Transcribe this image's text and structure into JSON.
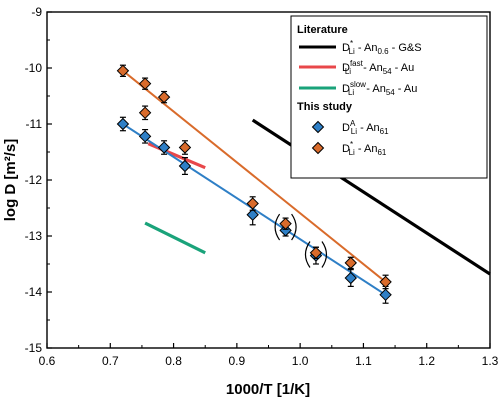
{
  "chart_data": {
    "type": "scatter",
    "xlabel": "1000/T [1/K]",
    "ylabel": "log D [m²/s]",
    "xlim": [
      0.6,
      1.3
    ],
    "ylim": [
      -15,
      -9
    ],
    "xticks": [
      "0.6",
      "0.7",
      "0.8",
      "0.9",
      "1.0",
      "1.1",
      "1.2",
      "1.3"
    ],
    "yticks": [
      "-15",
      "-14",
      "-13",
      "-12",
      "-11",
      "-10",
      "-9"
    ],
    "legend_position": "top-right",
    "legend": {
      "group1_title": "Literature",
      "group2_title": "This study",
      "entries": [
        {
          "sym": "D",
          "sup": "*",
          "sub": "Li",
          "rest": " - An",
          "rsub": "0.6",
          "tail": " - G&S",
          "color": "#000000",
          "kind": "line"
        },
        {
          "sym": "D",
          "sup": "fast",
          "sub": "Li",
          "rest": " - An",
          "rsub": "54",
          "tail": " - Au",
          "color": "#e8474a",
          "kind": "line"
        },
        {
          "sym": "D",
          "sup": "slow",
          "sub": "Li",
          "rest": " - An",
          "rsub": "54",
          "tail": " - Au",
          "color": "#1aa37a",
          "kind": "line"
        },
        {
          "sym": "D",
          "sup": "A",
          "sub": "Li",
          "rest": " - An",
          "rsub": "61",
          "tail": "",
          "color": "#2e7fc6",
          "kind": "marker"
        },
        {
          "sym": "D",
          "sup": "*",
          "sub": "Li",
          "rest": " - An",
          "rsub": "61",
          "tail": "",
          "color": "#d96b2b",
          "kind": "marker"
        }
      ]
    },
    "literature_lines": [
      {
        "name": "D*Li - An0.6 - G&S",
        "color": "#000000",
        "x": [
          0.925,
          1.3
        ],
        "y": [
          -10.93,
          -13.68
        ]
      },
      {
        "name": "DfastLi - An54 - Au",
        "color": "#e8474a",
        "x": [
          0.76,
          0.85
        ],
        "y": [
          -11.35,
          -11.78
        ]
      },
      {
        "name": "DslowLi - An54 - Au",
        "color": "#1aa37a",
        "x": [
          0.755,
          0.85
        ],
        "y": [
          -12.77,
          -13.3
        ]
      }
    ],
    "series": [
      {
        "name": "DALi - An61",
        "color": "#2e7fc6",
        "x": [
          0.72,
          0.755,
          0.785,
          0.818,
          0.925,
          0.977,
          1.025,
          1.08,
          1.135
        ],
        "y": [
          -11.0,
          -11.22,
          -11.42,
          -11.75,
          -12.62,
          -12.9,
          -13.35,
          -13.75,
          -14.05
        ],
        "err": [
          0.12,
          0.12,
          0.12,
          0.15,
          0.18,
          0.1,
          0.15,
          0.15,
          0.15
        ],
        "fit": {
          "x": [
            0.72,
            1.135
          ],
          "y": [
            -11.0,
            -14.05
          ]
        }
      },
      {
        "name": "D*Li - An61",
        "color": "#d96b2b",
        "x": [
          0.72,
          0.755,
          0.755,
          0.785,
          0.818,
          0.925,
          0.977,
          1.025,
          1.08,
          1.135
        ],
        "y": [
          -10.05,
          -10.28,
          -10.8,
          -10.52,
          -11.42,
          -12.42,
          -12.78,
          -13.3,
          -13.48,
          -13.82
        ],
        "err": [
          0.1,
          0.1,
          0.12,
          0.1,
          0.12,
          0.12,
          0.1,
          0.1,
          0.1,
          0.12
        ],
        "fit": {
          "x": [
            0.72,
            1.135
          ],
          "y": [
            -10.05,
            -13.82
          ]
        }
      }
    ],
    "bracketed_points": [
      {
        "x": 0.977,
        "y": -12.84
      },
      {
        "x": 1.025,
        "y": -13.33
      }
    ]
  }
}
